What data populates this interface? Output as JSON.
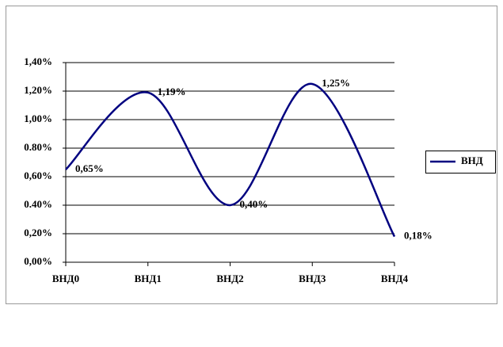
{
  "chart_data": {
    "type": "line",
    "categories": [
      "ВНД0",
      "ВНД1",
      "ВНД2",
      "ВНД3",
      "ВНД4"
    ],
    "series": [
      {
        "name": "ВНД",
        "color": "#000080",
        "values": [
          0.65,
          1.19,
          0.4,
          1.25,
          0.18
        ],
        "value_labels": [
          "0,65%",
          "1,19%",
          "0,40%",
          "1,25%",
          "0,18%"
        ]
      }
    ],
    "ylim": [
      0,
      1.4
    ],
    "yticks": [
      {
        "value": 0,
        "label": "0,00%"
      },
      {
        "value": 0.2,
        "label": "0,20%"
      },
      {
        "value": 0.4,
        "label": "0.40%"
      },
      {
        "value": 0.6,
        "label": "0,60%"
      },
      {
        "value": 0.8,
        "label": "0.80%"
      },
      {
        "value": 1.0,
        "label": "1,00%"
      },
      {
        "value": 1.2,
        "label": "1,20%"
      },
      {
        "value": 1.4,
        "label": "1,40%"
      }
    ],
    "grid": true,
    "legend": "right"
  }
}
